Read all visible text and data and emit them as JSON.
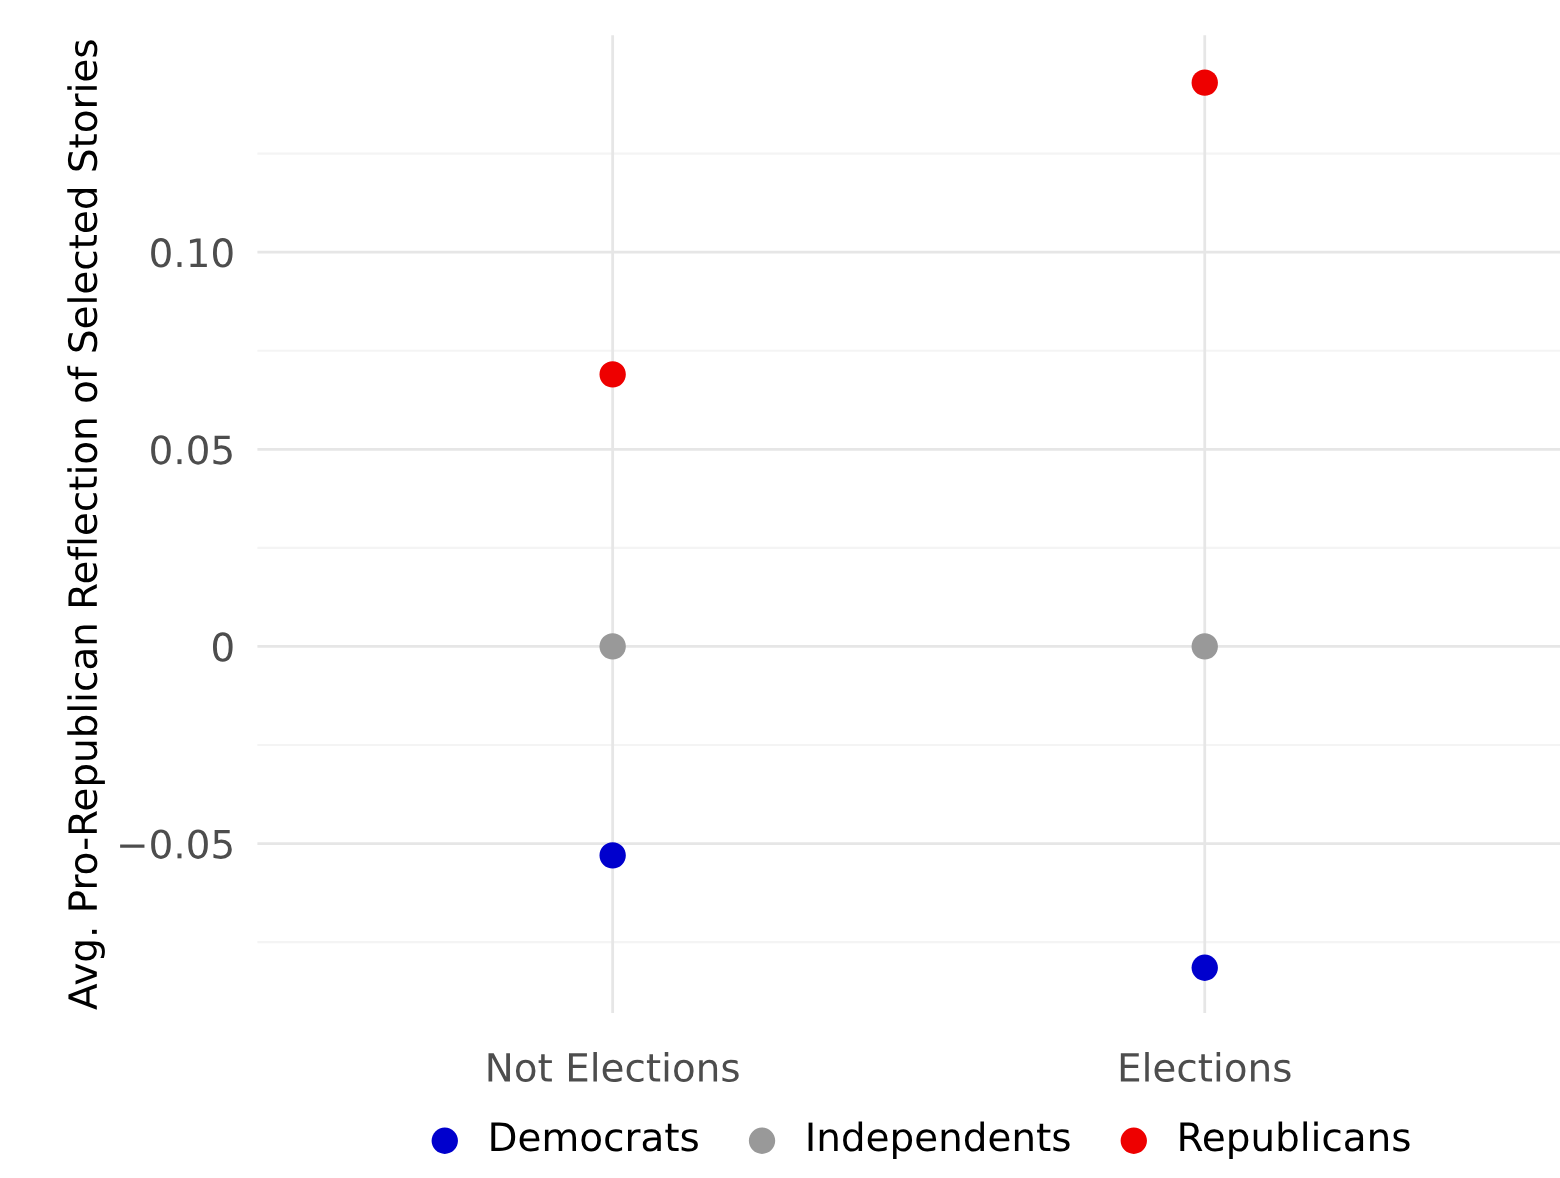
{
  "chart_data": {
    "type": "scatter",
    "ylabel": "Avg. Pro-Republican Reflection of Selected Stories",
    "categories": [
      "Not Elections",
      "Elections"
    ],
    "series": [
      {
        "name": "Democrats",
        "color": "#0000cd",
        "values": [
          -0.053,
          -0.0815
        ]
      },
      {
        "name": "Independents",
        "color": "#999999",
        "values": [
          0,
          0
        ]
      },
      {
        "name": "Republicans",
        "color": "#ee0000",
        "values": [
          0.069,
          0.143
        ]
      }
    ],
    "ylim": [
      -0.093,
      0.155
    ],
    "yticks": [
      {
        "value": -0.05,
        "label": "−0.05"
      },
      0,
      {
        "value": 0.05,
        "label": "0.05"
      },
      {
        "value": 0.1,
        "label": "0.10"
      }
    ],
    "grid": true,
    "legend": "bottom",
    "marker": "circle"
  }
}
